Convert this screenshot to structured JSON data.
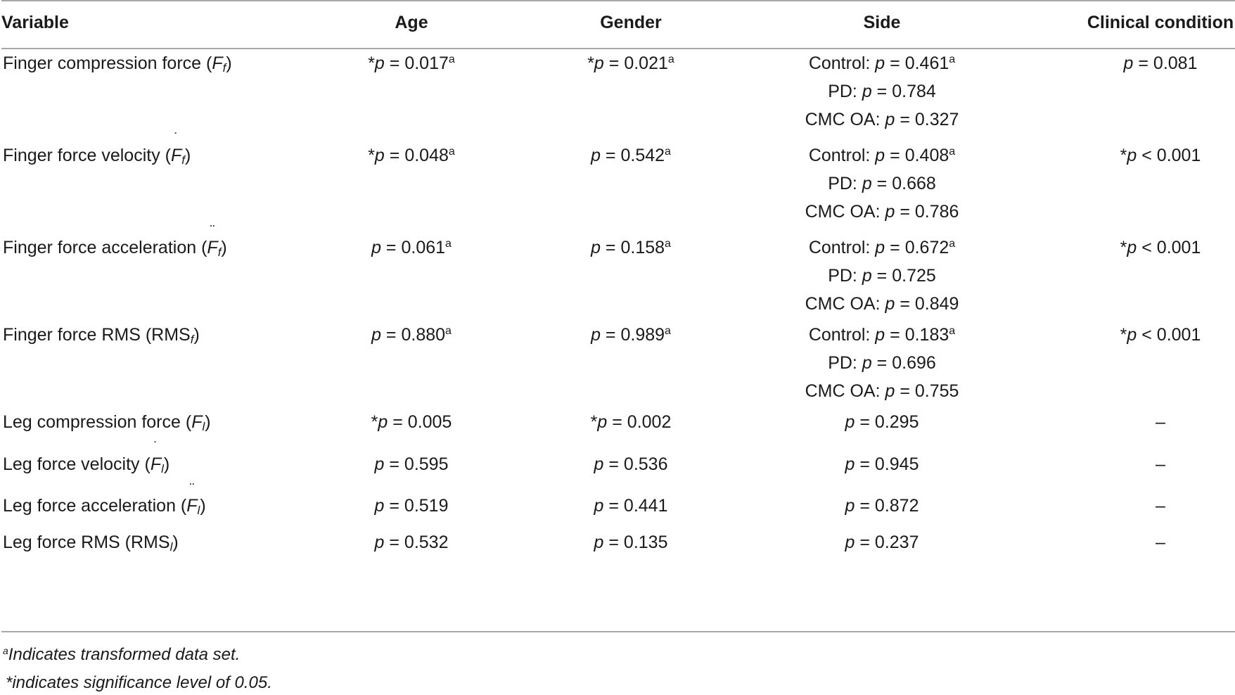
{
  "table": {
    "headers": {
      "variable": "Variable",
      "age": "Age",
      "gender": "Gender",
      "side": "Side",
      "clinical": "Clinical condition"
    },
    "rows": [
      {
        "variable": {
          "label": "Finger compression force (",
          "sym": "F",
          "sub": "f",
          "dots": "",
          "close": ")"
        },
        "age": {
          "star": "*",
          "p": "p",
          "rel": " = ",
          "val": "0.017",
          "sup": "a"
        },
        "gender": {
          "star": "*",
          "p": "p",
          "rel": " = ",
          "val": "0.021",
          "sup": "a"
        },
        "side": [
          {
            "prefix": "Control: ",
            "p": "p",
            "rel": " = ",
            "val": "0.461",
            "sup": "a"
          },
          {
            "prefix": "PD: ",
            "p": "p",
            "rel": " = ",
            "val": "0.784",
            "sup": ""
          },
          {
            "prefix": "CMC OA: ",
            "p": "p",
            "rel": " = ",
            "val": "0.327",
            "sup": ""
          }
        ],
        "clinical": {
          "star": "",
          "p": "p",
          "rel": " = ",
          "val": "0.081",
          "sup": ""
        }
      },
      {
        "variable": {
          "label": "Finger force velocity (",
          "sym": "F",
          "sub": "f",
          "dots": "˙",
          "close": ")"
        },
        "age": {
          "star": "*",
          "p": "p",
          "rel": " = ",
          "val": "0.048",
          "sup": "a"
        },
        "gender": {
          "star": "",
          "p": "p",
          "rel": " = ",
          "val": "0.542",
          "sup": "a"
        },
        "side": [
          {
            "prefix": "Control: ",
            "p": "p",
            "rel": " = ",
            "val": "0.408",
            "sup": "a"
          },
          {
            "prefix": "PD: ",
            "p": "p",
            "rel": " = ",
            "val": "0.668",
            "sup": ""
          },
          {
            "prefix": "CMC OA: ",
            "p": "p",
            "rel": " = ",
            "val": "0.786",
            "sup": ""
          }
        ],
        "clinical": {
          "star": "*",
          "p": "p",
          "rel": " < ",
          "val": "0.001",
          "sup": ""
        }
      },
      {
        "variable": {
          "label": "Finger force acceleration (",
          "sym": "F",
          "sub": "f",
          "dots": "¨",
          "close": ")"
        },
        "age": {
          "star": "",
          "p": "p",
          "rel": " = ",
          "val": "0.061",
          "sup": "a"
        },
        "gender": {
          "star": "",
          "p": "p",
          "rel": " = ",
          "val": "0.158",
          "sup": "a"
        },
        "side": [
          {
            "prefix": "Control: ",
            "p": "p",
            "rel": " = ",
            "val": "0.672",
            "sup": "a"
          },
          {
            "prefix": "PD: ",
            "p": "p",
            "rel": " = ",
            "val": "0.725",
            "sup": ""
          },
          {
            "prefix": "CMC OA: ",
            "p": "p",
            "rel": " = ",
            "val": "0.849",
            "sup": ""
          }
        ],
        "clinical": {
          "star": "*",
          "p": "p",
          "rel": " < ",
          "val": "0.001",
          "sup": ""
        }
      },
      {
        "variable": {
          "label": "Finger force RMS (RMS",
          "sym": "",
          "sub": "f",
          "dots": "",
          "close": ")"
        },
        "age": {
          "star": "",
          "p": "p",
          "rel": " = ",
          "val": "0.880",
          "sup": "a"
        },
        "gender": {
          "star": "",
          "p": "p",
          "rel": " = ",
          "val": "0.989",
          "sup": "a"
        },
        "side": [
          {
            "prefix": "Control: ",
            "p": "p",
            "rel": " = ",
            "val": "0.183",
            "sup": "a"
          },
          {
            "prefix": "PD: ",
            "p": "p",
            "rel": " = ",
            "val": "0.696",
            "sup": ""
          },
          {
            "prefix": "CMC OA: ",
            "p": "p",
            "rel": " = ",
            "val": "0.755",
            "sup": ""
          }
        ],
        "clinical": {
          "star": "*",
          "p": "p",
          "rel": " < ",
          "val": "0.001",
          "sup": ""
        }
      },
      {
        "variable": {
          "label": "Leg compression force (",
          "sym": "F",
          "sub": "l",
          "dots": "",
          "close": ")"
        },
        "age": {
          "star": "*",
          "p": "p",
          "rel": " = ",
          "val": "0.005",
          "sup": ""
        },
        "gender": {
          "star": "*",
          "p": "p",
          "rel": " = ",
          "val": "0.002",
          "sup": ""
        },
        "side": [
          {
            "prefix": "",
            "p": "p",
            "rel": " = ",
            "val": "0.295",
            "sup": ""
          }
        ],
        "clinical": {
          "dash": "–"
        }
      },
      {
        "variable": {
          "label": "Leg force velocity (",
          "sym": "F",
          "sub": "l",
          "dots": "˙",
          "close": ")"
        },
        "age": {
          "star": "",
          "p": "p",
          "rel": " = ",
          "val": "0.595",
          "sup": ""
        },
        "gender": {
          "star": "",
          "p": "p",
          "rel": " = ",
          "val": "0.536",
          "sup": ""
        },
        "side": [
          {
            "prefix": "",
            "p": "p",
            "rel": " = ",
            "val": "0.945",
            "sup": ""
          }
        ],
        "clinical": {
          "dash": "–"
        }
      },
      {
        "variable": {
          "label": "Leg force acceleration (",
          "sym": "F",
          "sub": "l",
          "dots": "¨",
          "close": ")"
        },
        "age": {
          "star": "",
          "p": "p",
          "rel": " = ",
          "val": "0.519",
          "sup": ""
        },
        "gender": {
          "star": "",
          "p": "p",
          "rel": " = ",
          "val": "0.441",
          "sup": ""
        },
        "side": [
          {
            "prefix": "",
            "p": "p",
            "rel": " = ",
            "val": "0.872",
            "sup": ""
          }
        ],
        "clinical": {
          "dash": "–"
        }
      },
      {
        "variable": {
          "label": "Leg force RMS (RMS",
          "sym": "",
          "sub": "l",
          "dots": "",
          "close": ")"
        },
        "age": {
          "star": "",
          "p": "p",
          "rel": " = ",
          "val": "0.532",
          "sup": ""
        },
        "gender": {
          "star": "",
          "p": "p",
          "rel": " = ",
          "val": "0.135",
          "sup": ""
        },
        "side": [
          {
            "prefix": "",
            "p": "p",
            "rel": " = ",
            "val": "0.237",
            "sup": ""
          }
        ],
        "clinical": {
          "dash": "–"
        }
      }
    ]
  },
  "footnotes": {
    "a_mark": "a",
    "a_text": "Indicates transformed data set.",
    "sig_text": "*indicates significance level of 0.05."
  }
}
